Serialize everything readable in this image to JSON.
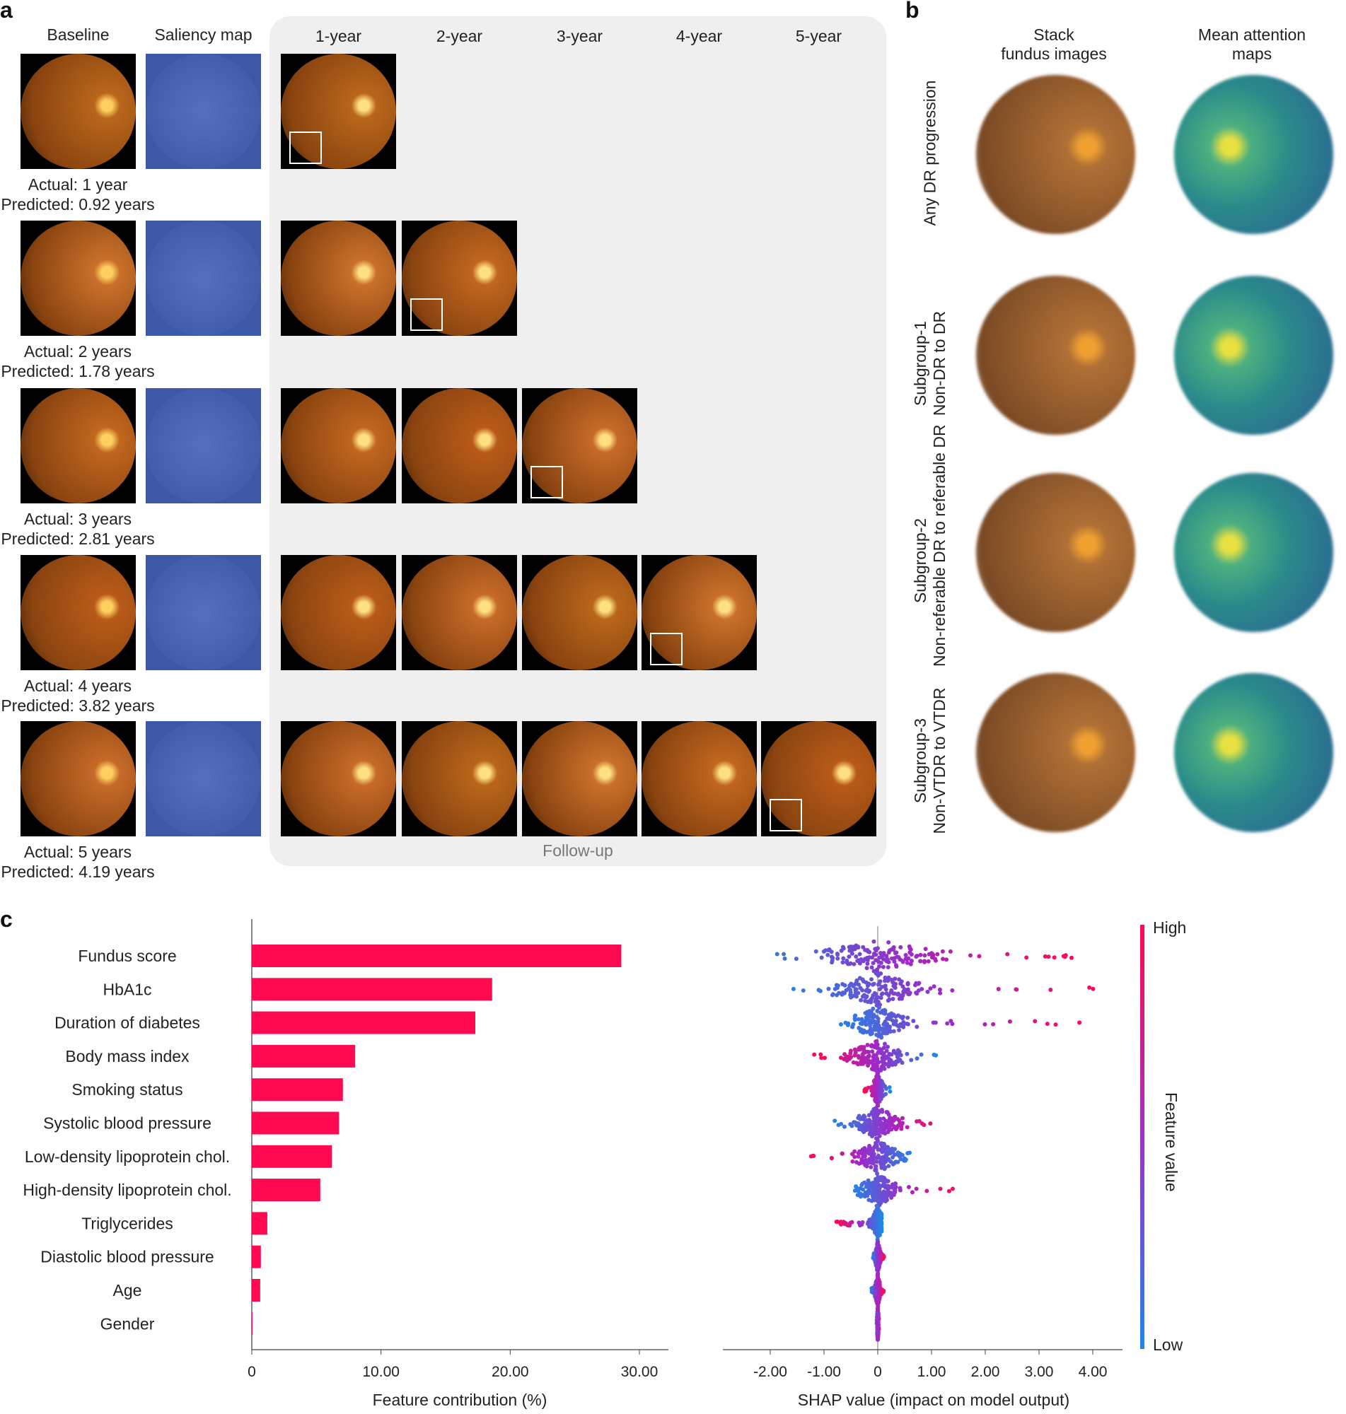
{
  "panel_a": {
    "label": "a",
    "headers": {
      "baseline": "Baseline",
      "saliency": "Saliency map"
    },
    "followup_headers": [
      "1-year",
      "2-year",
      "3-year",
      "4-year",
      "5-year"
    ],
    "followup_label": "Follow-up",
    "rows": [
      {
        "actual": "Actual: 1 year",
        "predicted": "Predicted: 0.92 years",
        "followups": 1
      },
      {
        "actual": "Actual: 2 years",
        "predicted": "Predicted: 1.78 years",
        "followups": 2
      },
      {
        "actual": "Actual: 3 years",
        "predicted": "Predicted: 2.81 years",
        "followups": 3
      },
      {
        "actual": "Actual: 4 years",
        "predicted": "Predicted: 3.82 years",
        "followups": 4
      },
      {
        "actual": "Actual: 5 years",
        "predicted": "Predicted: 4.19 years",
        "followups": 5
      }
    ]
  },
  "panel_b": {
    "label": "b",
    "headers": [
      "Stack\nfundus images",
      "Mean attention\nmaps"
    ],
    "rows": [
      {
        "line1": "Any DR progression",
        "line2": ""
      },
      {
        "line1": "Subgroup-1",
        "line2": "Non-DR to DR"
      },
      {
        "line1": "Subgroup-2",
        "line2": "Non-referable DR to referable DR"
      },
      {
        "line1": "Subgroup-3",
        "line2": "Non-VTDR to VTDR"
      }
    ]
  },
  "panel_c": {
    "label": "c"
  },
  "chart_data": [
    {
      "type": "bar",
      "orientation": "horizontal",
      "categories": [
        "Fundus score",
        "HbA1c",
        "Duration of diabetes",
        "Body mass index",
        "Smoking status",
        "Systolic blood pressure",
        "Low-density lipoprotein chol.",
        "High-density lipoprotein chol.",
        "Triglycerides",
        "Diastolic blood pressure",
        "Age",
        "Gender"
      ],
      "values": [
        28.6,
        18.6,
        17.3,
        8.0,
        7.05,
        6.75,
        6.2,
        5.3,
        1.2,
        0.7,
        0.65,
        0.05
      ],
      "xlabel": "Feature contribution (%)",
      "xticks": [
        "0",
        "10.00",
        "20.00",
        "30.00"
      ],
      "xlim": [
        0,
        32
      ],
      "color": "#ff0a50"
    },
    {
      "type": "scatter",
      "subtype": "shap-beeswarm",
      "xlabel": "SHAP value (impact on model output)",
      "xticks": [
        "-2.00",
        "-1.00",
        "0",
        "1.00",
        "2.00",
        "3.00",
        "4.00"
      ],
      "xlim": [
        -2.8,
        4.6
      ],
      "colorbar": {
        "label": "Feature value",
        "high": "High",
        "low": "Low",
        "high_color": "#ff0a50",
        "low_color": "#1e88e5"
      },
      "series": [
        {
          "feature": "Fundus score",
          "min": -2.5,
          "max": 3.65,
          "spread": 1.0,
          "low_side": "negative"
        },
        {
          "feature": "HbA1c",
          "min": -1.8,
          "max": 4.15,
          "spread": 0.8,
          "low_side": "negative"
        },
        {
          "feature": "Duration of diabetes",
          "min": -0.85,
          "max": 3.8,
          "spread": 0.5,
          "low_side": "negative"
        },
        {
          "feature": "Body mass index",
          "min": -1.2,
          "max": 1.1,
          "spread": 0.5,
          "low_side": "positive"
        },
        {
          "feature": "Smoking status",
          "min": -0.25,
          "max": 0.23,
          "spread": 0.1,
          "low_side": "positive"
        },
        {
          "feature": "Systolic blood pressure",
          "min": -0.8,
          "max": 1.25,
          "spread": 0.4,
          "low_side": "negative"
        },
        {
          "feature": "Low-density lipoprotein chol.",
          "min": -1.3,
          "max": 0.68,
          "spread": 0.4,
          "low_side": "positive"
        },
        {
          "feature": "High-density lipoprotein chol.",
          "min": -0.5,
          "max": 1.47,
          "spread": 0.35,
          "low_side": "negative"
        },
        {
          "feature": "Triglycerides",
          "min": -0.78,
          "max": 0.07,
          "spread": 0.12,
          "low_side": "positive"
        },
        {
          "feature": "Diastolic blood pressure",
          "min": -0.1,
          "max": 0.13,
          "spread": 0.04,
          "low_side": "negative"
        },
        {
          "feature": "Age",
          "min": -0.13,
          "max": 0.11,
          "spread": 0.04,
          "low_side": "negative"
        },
        {
          "feature": "Gender",
          "min": -0.02,
          "max": 0.02,
          "spread": 0.01,
          "low_side": "negative"
        }
      ]
    }
  ]
}
